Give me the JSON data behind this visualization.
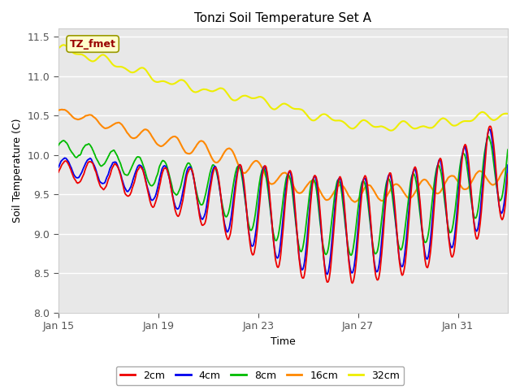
{
  "title": "Tonzi Soil Temperature Set A",
  "xlabel": "Time",
  "ylabel": "Soil Temperature (C)",
  "ylim": [
    8.0,
    11.6
  ],
  "yticks": [
    8.0,
    8.5,
    9.0,
    9.5,
    10.0,
    10.5,
    11.0,
    11.5
  ],
  "n_days": 18,
  "n_points_per_day": 48,
  "colors": {
    "2cm": "#ee0000",
    "4cm": "#0000ee",
    "8cm": "#00bb00",
    "16cm": "#ff8800",
    "32cm": "#eeee00"
  },
  "legend_label": "TZ_fmet",
  "legend_box_facecolor": "#ffffcc",
  "legend_box_edgecolor": "#999900",
  "legend_text_color": "#990000",
  "fig_facecolor": "#ffffff",
  "plot_bg_color": "#e8e8e8",
  "grid_color": "#ffffff",
  "xtick_labels": [
    "Jan 15",
    "Jan 19",
    "Jan 23",
    "Jan 27",
    "Jan 31"
  ],
  "xtick_positions": [
    0,
    4,
    8,
    12,
    16
  ]
}
